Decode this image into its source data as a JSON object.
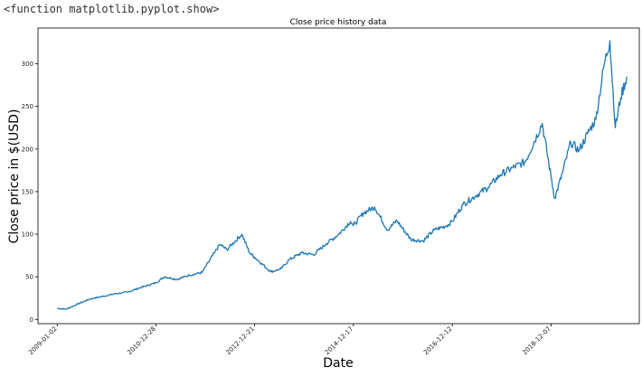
{
  "output_text": "<function matplotlib.pyplot.show>",
  "chart_data": {
    "type": "line",
    "title": "Close price history data",
    "xlabel": "Date",
    "ylabel": "Close price in $(USD)",
    "x_ticks": [
      "2009-01-02",
      "2010-12-28",
      "2012-12-21",
      "2014-12-17",
      "2016-12-12",
      "2018-12-07"
    ],
    "y_ticks": [
      0,
      50,
      100,
      150,
      200,
      250,
      300
    ],
    "xlim": [
      "2008-08-14",
      "2020-09-15"
    ],
    "ylim": [
      -5,
      342
    ],
    "grid": false,
    "line_color": "#1f77b4",
    "series": [
      {
        "x": [
          "2009-01-02",
          "2009-03-09",
          "2009-06-01",
          "2009-09-01",
          "2009-12-01",
          "2010-03-01",
          "2010-06-01",
          "2010-09-01",
          "2010-12-28",
          "2011-03-01",
          "2011-06-01",
          "2011-09-01",
          "2011-12-01",
          "2012-03-01",
          "2012-04-10",
          "2012-06-01",
          "2012-09-19",
          "2012-11-15",
          "2012-12-21",
          "2013-04-19",
          "2013-07-01",
          "2013-09-01",
          "2013-12-01",
          "2014-03-01",
          "2014-06-01",
          "2014-09-01",
          "2014-11-25",
          "2014-12-17",
          "2015-03-01",
          "2015-05-22",
          "2015-08-24",
          "2015-11-01",
          "2016-02-11",
          "2016-05-12",
          "2016-08-01",
          "2016-11-01",
          "2016-12-12",
          "2017-03-01",
          "2017-06-01",
          "2017-09-01",
          "2017-12-01",
          "2018-03-01",
          "2018-06-01",
          "2018-10-03",
          "2018-12-07",
          "2019-01-03",
          "2019-03-01",
          "2019-05-01",
          "2019-07-01",
          "2019-09-01",
          "2019-11-01",
          "2020-01-02",
          "2020-02-12",
          "2020-03-23",
          "2020-05-01",
          "2020-06-15"
        ],
        "values": [
          13,
          12,
          18,
          24,
          27,
          30,
          32,
          37,
          43,
          50,
          47,
          52,
          55,
          78,
          88,
          82,
          100,
          78,
          73,
          56,
          59,
          70,
          78,
          76,
          89,
          100,
          115,
          110,
          125,
          132,
          105,
          116,
          94,
          92,
          105,
          110,
          115,
          135,
          145,
          155,
          170,
          178,
          185,
          230,
          168,
          142,
          172,
          208,
          198,
          218,
          235,
          300,
          327,
          225,
          260,
          285
        ]
      }
    ]
  }
}
